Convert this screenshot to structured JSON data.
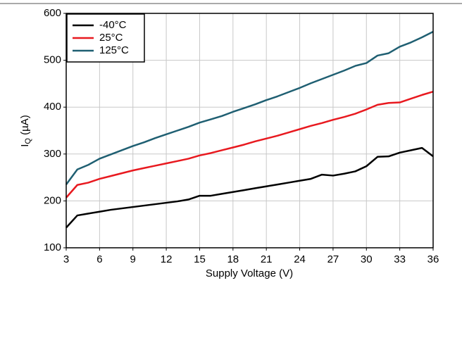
{
  "chart_data": {
    "type": "line",
    "ylabel": "I",
    "ylabel_sub": "Q",
    "ylabel_unit": " (µA)",
    "xlabel": "Supply Voltage (V)",
    "x": [
      3,
      4,
      5,
      6,
      7,
      8,
      9,
      10,
      11,
      12,
      13,
      14,
      15,
      16,
      17,
      18,
      19,
      20,
      21,
      22,
      23,
      24,
      25,
      26,
      27,
      28,
      29,
      30,
      31,
      32,
      33,
      34,
      35,
      36
    ],
    "series": [
      {
        "name": "-40°C",
        "color": "#000000",
        "values": [
          143,
          169,
          173,
          177,
          181,
          184,
          187,
          190,
          193,
          196,
          199,
          203,
          211,
          211,
          215,
          219,
          223,
          227,
          231,
          235,
          239,
          243,
          247,
          256,
          254,
          258,
          263,
          274,
          294,
          295,
          303,
          308,
          313,
          295
        ]
      },
      {
        "name": "25°C",
        "color": "#e8191f",
        "values": [
          207,
          234,
          239,
          247,
          253,
          259,
          265,
          270,
          275,
          280,
          285,
          290,
          297,
          302,
          308,
          314,
          320,
          327,
          333,
          339,
          346,
          353,
          360,
          366,
          373,
          379,
          386,
          395,
          405,
          409,
          410,
          418,
          426,
          433
        ]
      },
      {
        "name": "125°C",
        "color": "#1f5f72",
        "values": [
          235,
          267,
          277,
          290,
          299,
          308,
          317,
          325,
          334,
          342,
          350,
          358,
          367,
          374,
          381,
          390,
          398,
          406,
          415,
          423,
          432,
          441,
          451,
          460,
          469,
          478,
          488,
          494,
          510,
          515,
          529,
          538,
          549,
          561
        ]
      }
    ],
    "xlim": [
      3,
      36
    ],
    "xticks": [
      3,
      6,
      9,
      12,
      15,
      18,
      21,
      24,
      27,
      30,
      33,
      36
    ],
    "ylim": [
      100,
      600
    ],
    "yticks": [
      100,
      200,
      300,
      400,
      500,
      600
    ],
    "grid": true,
    "legend": "top-left"
  }
}
